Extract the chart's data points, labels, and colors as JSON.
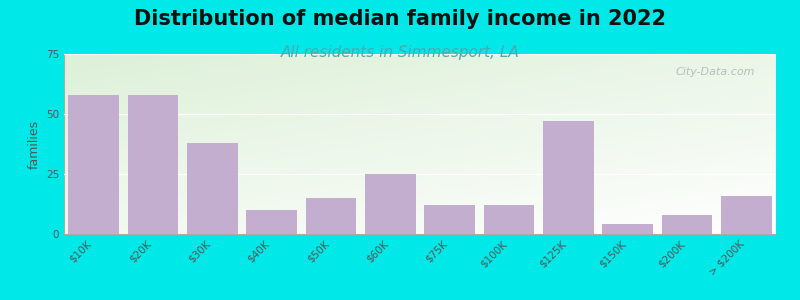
{
  "title": "Distribution of median family income in 2022",
  "subtitle": "All residents in Simmesport, LA",
  "ylabel": "families",
  "categories": [
    "$10K",
    "$20K",
    "$30K",
    "$40K",
    "$50K",
    "$60K",
    "$75K",
    "$100K",
    "$125K",
    "$150K",
    "$200K",
    "> $200K"
  ],
  "values": [
    58,
    58,
    38,
    10,
    15,
    25,
    12,
    12,
    47,
    4,
    8,
    16
  ],
  "bar_color": "#c4aed0",
  "background_outer": "#00e8e8",
  "bg_top_color": "#ddf0d8",
  "bg_bottom_color": "#ffffff",
  "title_fontsize": 15,
  "subtitle_fontsize": 11,
  "ylabel_fontsize": 9,
  "tick_fontsize": 7.5,
  "ylim": [
    0,
    75
  ],
  "yticks": [
    0,
    25,
    50,
    75
  ],
  "watermark": "City-Data.com",
  "subtitle_color": "#4aabab",
  "title_color": "#111111",
  "grid_color": "#ffffff",
  "tick_color": "#555555"
}
